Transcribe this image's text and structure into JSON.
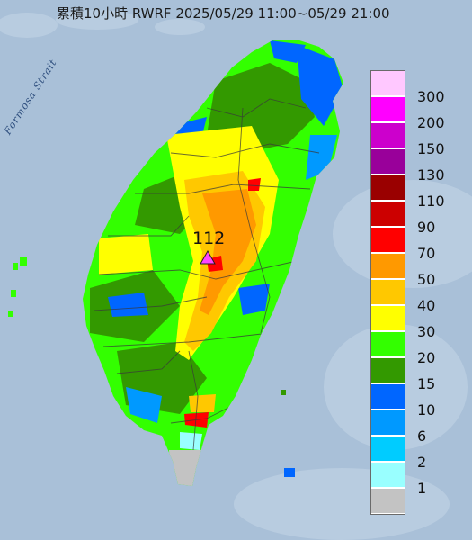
{
  "title": "累積10小時 RWRF 2025/05/29 11:00~05/29 21:00",
  "sea_label": "Formosa Strait",
  "max_value": "112",
  "icons": {
    "max_marker": "triangle-marker-icon"
  },
  "legend": [
    {
      "label": "300",
      "color": "#ffc8ff"
    },
    {
      "label": "200",
      "color": "#ff00ff"
    },
    {
      "label": "150",
      "color": "#cc00cc"
    },
    {
      "label": "130",
      "color": "#99009a"
    },
    {
      "label": "110",
      "color": "#9a0000"
    },
    {
      "label": "90",
      "color": "#cc0000"
    },
    {
      "label": "70",
      "color": "#ff0000"
    },
    {
      "label": "50",
      "color": "#ff9900"
    },
    {
      "label": "40",
      "color": "#ffc800"
    },
    {
      "label": "30",
      "color": "#ffff00"
    },
    {
      "label": "20",
      "color": "#33ff00"
    },
    {
      "label": "15",
      "color": "#339900"
    },
    {
      "label": "10",
      "color": "#0066ff"
    },
    {
      "label": "6",
      "color": "#0099ff"
    },
    {
      "label": "2",
      "color": "#00ccff"
    },
    {
      "label": "1",
      "color": "#99ffff"
    },
    {
      "label": "",
      "color": "#c3c3c3"
    }
  ]
}
